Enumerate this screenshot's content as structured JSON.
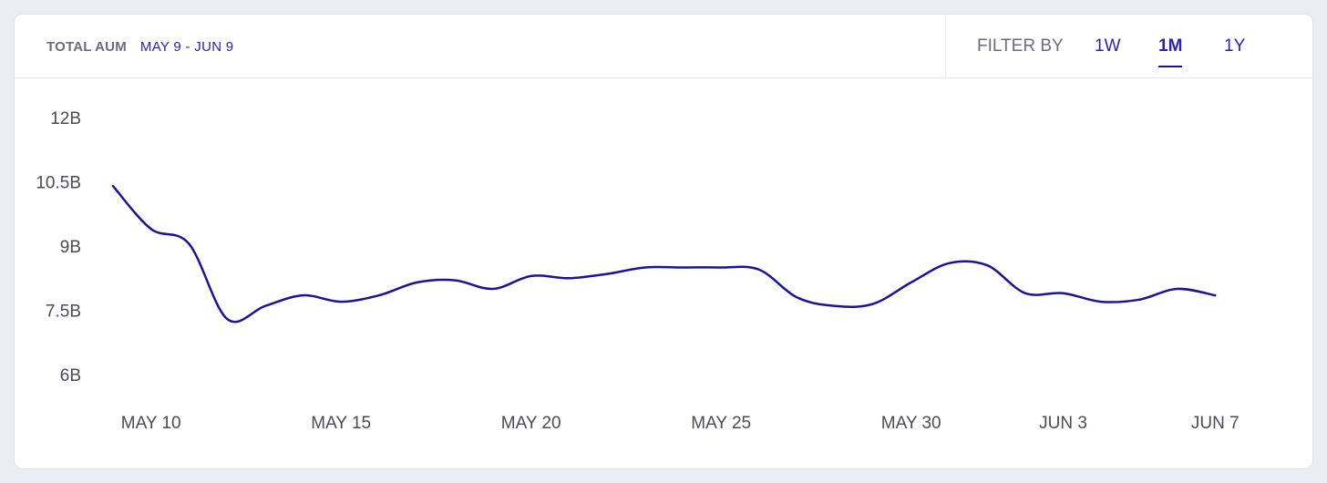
{
  "header": {
    "title": "TOTAL AUM",
    "date_range": "MAY 9 - JUN 9",
    "filter_label": "FILTER BY",
    "filters": [
      "1W",
      "1M",
      "1Y"
    ],
    "active_filter": "1M"
  },
  "colors": {
    "line": "#1c1496",
    "accent": "#2b21b5",
    "muted_text": "#6b6b83",
    "background": "#ececf5"
  },
  "chart_data": {
    "type": "line",
    "title": "",
    "xlabel": "",
    "ylabel": "",
    "y_ticks": [
      "12B",
      "10.5B",
      "9B",
      "7.5B",
      "6B"
    ],
    "y_tick_values": [
      12,
      10.5,
      9,
      7.5,
      6
    ],
    "x_ticks": [
      "MAY 10",
      "MAY 15",
      "MAY 20",
      "MAY 25",
      "MAY 30",
      "JUN 3",
      "JUN 7"
    ],
    "ylim": [
      6,
      12
    ],
    "grid": false,
    "legend": "none",
    "series": [
      {
        "x": [
          "May 9",
          "May 10",
          "May 11",
          "May 12",
          "May 13",
          "May 14",
          "May 15",
          "May 16",
          "May 17",
          "May 18",
          "May 19",
          "May 20",
          "May 21",
          "May 22",
          "May 23",
          "May 24",
          "May 25",
          "May 26",
          "May 27",
          "May 28",
          "May 29",
          "May 30",
          "May 31",
          "Jun 1",
          "Jun 2",
          "Jun 3",
          "Jun 4",
          "Jun 5",
          "Jun 6",
          "Jun 7"
        ],
        "values": [
          10.4,
          9.4,
          9.05,
          7.3,
          7.6,
          7.85,
          7.7,
          7.85,
          8.15,
          8.2,
          8.0,
          8.3,
          8.25,
          8.35,
          8.5,
          8.5,
          8.5,
          8.45,
          7.8,
          7.6,
          7.65,
          8.15,
          8.6,
          8.55,
          7.9,
          7.9,
          7.7,
          7.75,
          8.0,
          7.85
        ]
      }
    ]
  }
}
